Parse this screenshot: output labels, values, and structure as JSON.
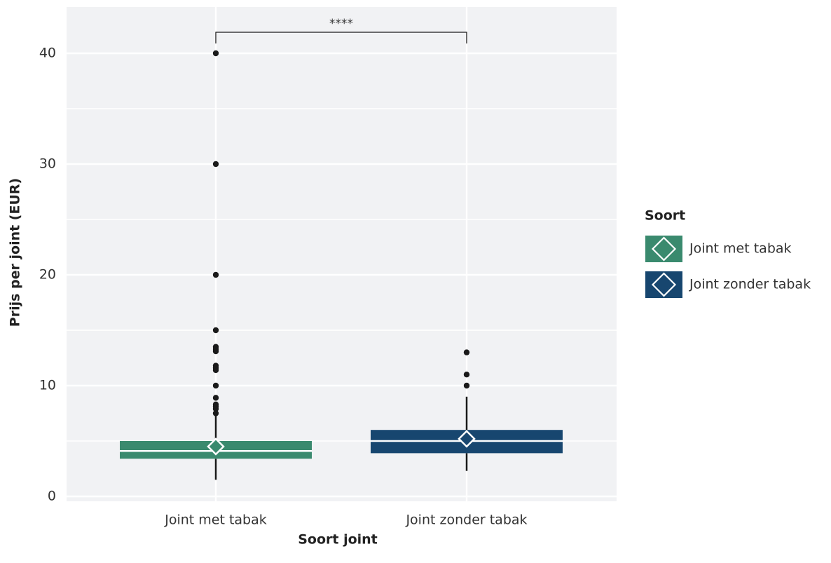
{
  "chart_data": {
    "type": "box",
    "xlabel": "Soort joint",
    "ylabel": "Prijs per joint (EUR)",
    "ylim": [
      0,
      40
    ],
    "yticks": [
      0,
      10,
      20,
      30,
      40
    ],
    "grid": true,
    "legend": {
      "title": "Soort",
      "position": "right",
      "entries": [
        {
          "label": "Joint met tabak",
          "color": "#3a8a6e"
        },
        {
          "label": "Joint zonder tabak",
          "color": "#17466f"
        }
      ]
    },
    "categories": [
      "Joint met tabak",
      "Joint zonder tabak"
    ],
    "series": [
      {
        "color": "#3a8a6e",
        "whisker_low": 1.5,
        "q1": 3.4,
        "median": 4.1,
        "q3": 5.0,
        "whisker_high": 7.3,
        "mean": 4.5,
        "outliers": [
          7.5,
          7.9,
          8.1,
          8.3,
          8.9,
          10.0,
          11.4,
          11.6,
          11.8,
          13.1,
          13.3,
          13.5,
          15.0,
          20.0,
          30.0,
          40.0
        ]
      },
      {
        "color": "#17466f",
        "whisker_low": 2.3,
        "q1": 3.9,
        "median": 5.0,
        "q3": 6.0,
        "whisker_high": 9.0,
        "mean": 5.2,
        "outliers": [
          10.0,
          11.0,
          13.0
        ]
      }
    ],
    "annotations": [
      {
        "type": "significance",
        "from": "Joint met tabak",
        "to": "Joint zonder tabak",
        "y": 41.9,
        "label": "****"
      }
    ]
  }
}
